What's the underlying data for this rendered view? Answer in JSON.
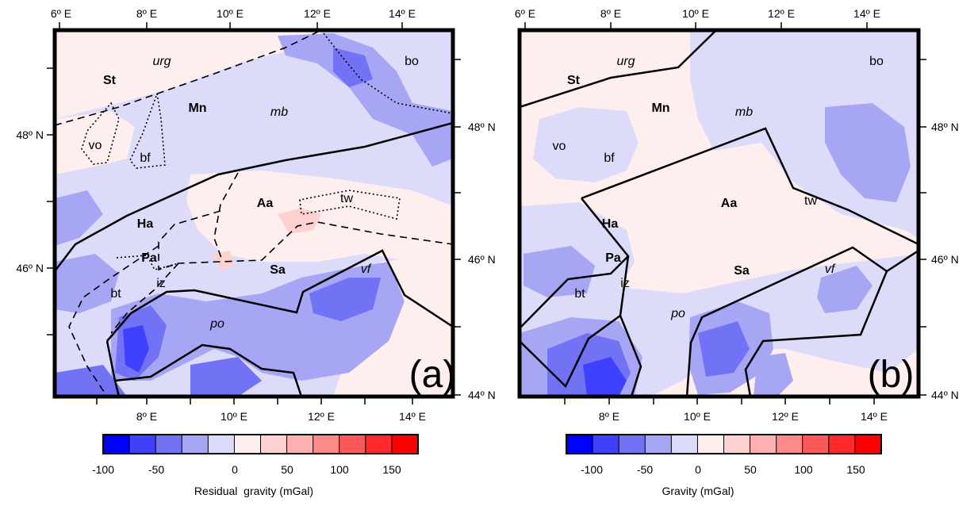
{
  "panels": [
    {
      "id": "a",
      "panel_label": "(a)",
      "top_lon_labels": [
        "6º E",
        "8º E",
        "10º E",
        "12º E",
        "14º E"
      ],
      "bottom_lon_labels": [
        "8º E",
        "10º E",
        "12º E",
        "14º E"
      ],
      "lat_labels_left": [
        "48º N",
        "46º N"
      ],
      "lat_labels_right": [
        "48º N",
        "46º N",
        "44º N"
      ],
      "regions": [
        {
          "text": "St",
          "style": "bold"
        },
        {
          "text": "urg",
          "style": "italic"
        },
        {
          "text": "Mn",
          "style": "bold"
        },
        {
          "text": "mb",
          "style": "italic"
        },
        {
          "text": "bo",
          "style": "normal"
        },
        {
          "text": "vo",
          "style": "normal"
        },
        {
          "text": "bf",
          "style": "normal"
        },
        {
          "text": "Aa",
          "style": "bold"
        },
        {
          "text": "tw",
          "style": "normal"
        },
        {
          "text": "Ha",
          "style": "bold"
        },
        {
          "text": "Pa",
          "style": "bold"
        },
        {
          "text": "iz",
          "style": "normal"
        },
        {
          "text": "Sa",
          "style": "bold"
        },
        {
          "text": "vf",
          "style": "italic"
        },
        {
          "text": "bt",
          "style": "normal"
        },
        {
          "text": "po",
          "style": "italic"
        }
      ],
      "colorbar": {
        "title": "Residual  gravity (mGal)",
        "tick_labels": [
          "-100",
          "-50",
          "0",
          "50",
          "100",
          "150"
        ]
      }
    },
    {
      "id": "b",
      "panel_label": "(b)",
      "top_lon_labels": [
        "6º E",
        "8º E",
        "10º E",
        "12º E",
        "14º E"
      ],
      "bottom_lon_labels": [
        "8º E",
        "10º E",
        "12º E",
        "14º E"
      ],
      "lat_labels_right": [
        "48º N",
        "46º N",
        "44º N"
      ],
      "regions": [
        {
          "text": "St",
          "style": "bold"
        },
        {
          "text": "urg",
          "style": "italic"
        },
        {
          "text": "Mn",
          "style": "bold"
        },
        {
          "text": "mb",
          "style": "italic"
        },
        {
          "text": "bo",
          "style": "normal"
        },
        {
          "text": "vo",
          "style": "normal"
        },
        {
          "text": "bf",
          "style": "normal"
        },
        {
          "text": "Aa",
          "style": "bold"
        },
        {
          "text": "tw",
          "style": "normal"
        },
        {
          "text": "Ha",
          "style": "bold"
        },
        {
          "text": "Pa",
          "style": "bold"
        },
        {
          "text": "iz",
          "style": "normal"
        },
        {
          "text": "Sa",
          "style": "bold"
        },
        {
          "text": "vf",
          "style": "italic"
        },
        {
          "text": "bt",
          "style": "normal"
        },
        {
          "text": "po",
          "style": "italic"
        }
      ],
      "colorbar": {
        "title": "Gravity (mGal)",
        "tick_labels": [
          "-100",
          "-50",
          "0",
          "50",
          "100",
          "150"
        ]
      }
    }
  ],
  "colors": {
    "scale": [
      "#0000ff",
      "#4040ff",
      "#7272f5",
      "#a6a6f5",
      "#dcdcfa",
      "#ffeeee",
      "#ffd0d0",
      "#ffb0b0",
      "#ff8a8a",
      "#ff5858",
      "#ff2a2a",
      "#ff0000"
    ],
    "frame": "#000000"
  }
}
